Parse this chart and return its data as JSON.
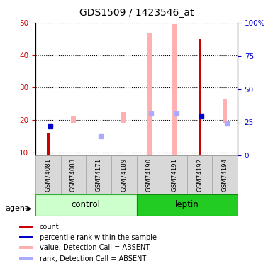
{
  "title": "GDS1509 / 1423546_at",
  "samples": [
    "GSM74081",
    "GSM74083",
    "GSM74171",
    "GSM74189",
    "GSM74190",
    "GSM74191",
    "GSM74192",
    "GSM74194"
  ],
  "pink_values_top": [
    null,
    21.0,
    null,
    22.5,
    47.0,
    49.5,
    null,
    26.5
  ],
  "pink_values_bot": [
    null,
    19.0,
    null,
    19.0,
    9.0,
    9.0,
    null,
    19.0
  ],
  "red_values": [
    16.0,
    null,
    null,
    null,
    null,
    null,
    45.0,
    null
  ],
  "dark_blue_vals": [
    18.0,
    null,
    null,
    null,
    null,
    null,
    21.0,
    null
  ],
  "light_blue_vals": [
    null,
    null,
    15.0,
    null,
    22.0,
    22.0,
    null,
    19.0
  ],
  "ylim_left": [
    9,
    50
  ],
  "ylim_right": [
    0,
    100
  ],
  "yticks_left": [
    10,
    20,
    30,
    40,
    50
  ],
  "yticks_right": [
    0,
    25,
    50,
    75,
    100
  ],
  "ytick_labels_right": [
    "0",
    "25",
    "50",
    "75",
    "100%"
  ],
  "left_color": "#cc0000",
  "right_color": "#0000cc",
  "pink_color": "#ffb0b0",
  "light_blue_color": "#aaaaff",
  "dark_red_color": "#cc0000",
  "dark_blue_color": "#0000cc",
  "control_light": "#ccffcc",
  "control_dark": "#44dd44",
  "leptin_color": "#22cc22",
  "gray_box": "#d8d8d8",
  "gray_border": "#aaaaaa"
}
